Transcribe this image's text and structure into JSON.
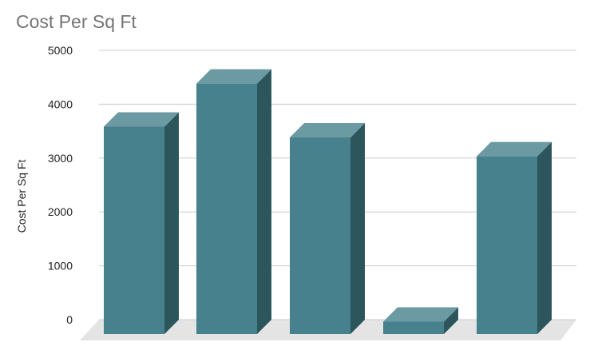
{
  "chart_data": {
    "type": "bar",
    "title": "Cost Per Sq Ft",
    "ylabel": "Cost Per Sq Ft",
    "xlabel": "",
    "categories": [
      "",
      "",
      "",
      "",
      ""
    ],
    "values": [
      3850,
      4650,
      3650,
      230,
      3300
    ],
    "ylim": [
      0,
      5000
    ],
    "yticks": [
      0,
      1000,
      2000,
      3000,
      4000,
      5000
    ],
    "grid": true,
    "style": "3d",
    "colors": {
      "front": "#47818d",
      "side": "#2c565c",
      "top": "#6b9aa2",
      "floor": "#e4e4e4",
      "grid": "#cccccc"
    }
  }
}
